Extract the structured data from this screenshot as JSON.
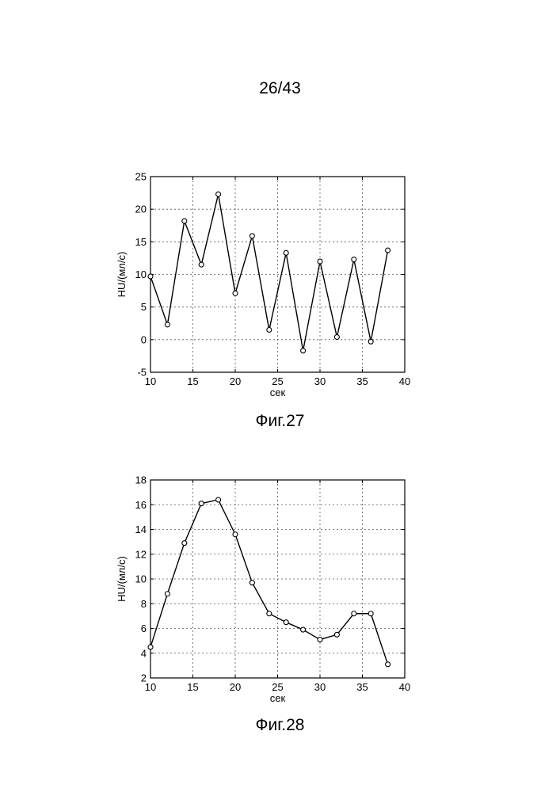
{
  "page": {
    "number": "26/43"
  },
  "figures": [
    {
      "caption": "Фиг.27"
    },
    {
      "caption": "Фиг.28"
    }
  ],
  "chart_data": [
    {
      "type": "line",
      "xlabel": "сек",
      "ylabel": "HU/(мл/с)",
      "xlim": [
        10,
        40
      ],
      "ylim": [
        -5,
        25
      ],
      "xticks": [
        10,
        15,
        20,
        25,
        30,
        35,
        40
      ],
      "yticks": [
        -5,
        0,
        5,
        10,
        15,
        20,
        25
      ],
      "grid": true,
      "marker": "circle",
      "series": [
        {
          "x": [
            10,
            12,
            14,
            16,
            18,
            20,
            22,
            24,
            26,
            28,
            30,
            32,
            34,
            36,
            38
          ],
          "y": [
            9.7,
            2.3,
            18.2,
            11.5,
            22.3,
            7.1,
            15.9,
            1.5,
            13.3,
            -1.7,
            12.0,
            0.4,
            12.3,
            -0.3,
            13.7
          ]
        }
      ]
    },
    {
      "type": "line",
      "xlabel": "сек",
      "ylabel": "HU/(мл/с)",
      "xlim": [
        10,
        40
      ],
      "ylim": [
        2,
        18
      ],
      "xticks": [
        10,
        15,
        20,
        25,
        30,
        35,
        40
      ],
      "yticks": [
        2,
        4,
        6,
        8,
        10,
        12,
        14,
        16,
        18
      ],
      "grid": true,
      "marker": "circle",
      "series": [
        {
          "x": [
            10,
            12,
            14,
            16,
            18,
            20,
            22,
            24,
            26,
            28,
            30,
            32,
            34,
            36,
            38
          ],
          "y": [
            4.5,
            8.8,
            12.9,
            16.1,
            16.4,
            13.6,
            9.7,
            7.2,
            6.5,
            5.9,
            5.1,
            5.5,
            7.2,
            7.2,
            3.1
          ]
        }
      ]
    }
  ]
}
